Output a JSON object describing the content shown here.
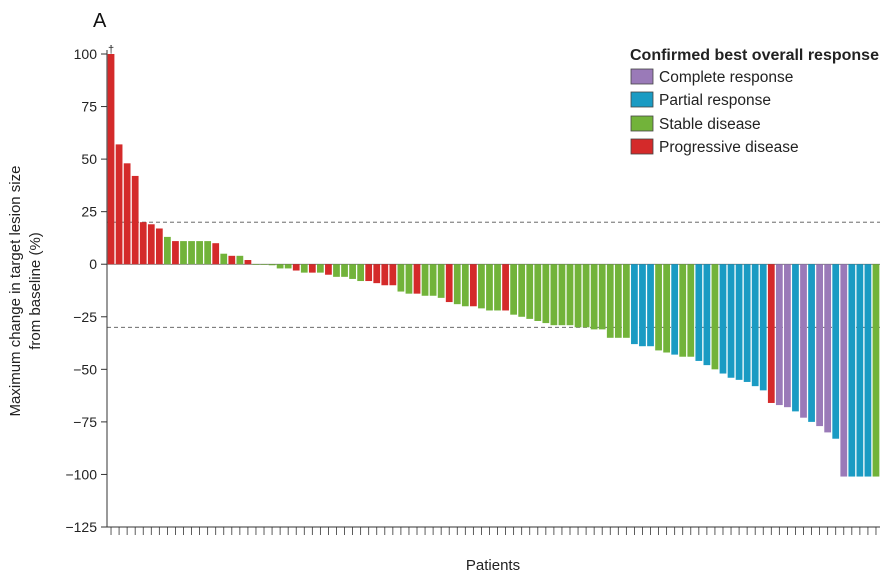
{
  "chart_data": {
    "type": "bar",
    "panel_label": "A",
    "ylabel_lines": [
      "Maximum change in target lesion size",
      "from baseline (%)"
    ],
    "xlabel": "Patients",
    "ylim": [
      -125,
      100
    ],
    "yticks": [
      100,
      75,
      50,
      25,
      0,
      -25,
      -50,
      -75,
      -100,
      -125
    ],
    "ytick_labels": [
      "100",
      "75",
      "50",
      "25",
      "0",
      "−25",
      "−50",
      "−75",
      "−100",
      "−125"
    ],
    "reference_lines": [
      20,
      -30
    ],
    "dagger_marker": "†",
    "legend": {
      "title": "Confirmed best overall response",
      "placement": "top-right",
      "items": [
        {
          "key": "CR",
          "label": "Complete response",
          "color": "#9a7ab8"
        },
        {
          "key": "PR",
          "label": "Partial response",
          "color": "#1a9bc3"
        },
        {
          "key": "SD",
          "label": "Stable disease",
          "color": "#72b33a"
        },
        {
          "key": "PD",
          "label": "Progressive disease",
          "color": "#d42a2a"
        }
      ]
    },
    "patients": [
      {
        "value": 100,
        "response": "PD",
        "dagger": true
      },
      {
        "value": 57,
        "response": "PD"
      },
      {
        "value": 48,
        "response": "PD"
      },
      {
        "value": 42,
        "response": "PD"
      },
      {
        "value": 20,
        "response": "PD"
      },
      {
        "value": 19,
        "response": "PD"
      },
      {
        "value": 17,
        "response": "PD"
      },
      {
        "value": 13,
        "response": "SD"
      },
      {
        "value": 11,
        "response": "PD"
      },
      {
        "value": 11,
        "response": "SD"
      },
      {
        "value": 11,
        "response": "SD"
      },
      {
        "value": 11,
        "response": "SD"
      },
      {
        "value": 11,
        "response": "SD"
      },
      {
        "value": 10,
        "response": "PD"
      },
      {
        "value": 5,
        "response": "SD"
      },
      {
        "value": 4,
        "response": "PD"
      },
      {
        "value": 4,
        "response": "SD"
      },
      {
        "value": 2,
        "response": "PD"
      },
      {
        "value": 0,
        "response": "SD"
      },
      {
        "value": 0,
        "response": "SD"
      },
      {
        "value": -0.5,
        "response": "SD"
      },
      {
        "value": -2,
        "response": "SD"
      },
      {
        "value": -2,
        "response": "SD"
      },
      {
        "value": -3,
        "response": "PD"
      },
      {
        "value": -4,
        "response": "SD"
      },
      {
        "value": -4,
        "response": "PD"
      },
      {
        "value": -4,
        "response": "SD"
      },
      {
        "value": -5,
        "response": "PD"
      },
      {
        "value": -6,
        "response": "SD"
      },
      {
        "value": -6,
        "response": "SD"
      },
      {
        "value": -7,
        "response": "SD"
      },
      {
        "value": -8,
        "response": "SD"
      },
      {
        "value": -8,
        "response": "PD"
      },
      {
        "value": -9,
        "response": "PD"
      },
      {
        "value": -10,
        "response": "PD"
      },
      {
        "value": -10,
        "response": "PD"
      },
      {
        "value": -13,
        "response": "SD"
      },
      {
        "value": -14,
        "response": "SD"
      },
      {
        "value": -14,
        "response": "PD"
      },
      {
        "value": -15,
        "response": "SD"
      },
      {
        "value": -15,
        "response": "SD"
      },
      {
        "value": -16,
        "response": "SD"
      },
      {
        "value": -18,
        "response": "PD"
      },
      {
        "value": -19,
        "response": "SD"
      },
      {
        "value": -20,
        "response": "SD"
      },
      {
        "value": -20,
        "response": "PD"
      },
      {
        "value": -21,
        "response": "SD"
      },
      {
        "value": -22,
        "response": "SD"
      },
      {
        "value": -22,
        "response": "SD"
      },
      {
        "value": -22,
        "response": "PD"
      },
      {
        "value": -24,
        "response": "SD"
      },
      {
        "value": -25,
        "response": "SD"
      },
      {
        "value": -26,
        "response": "SD"
      },
      {
        "value": -27,
        "response": "SD"
      },
      {
        "value": -28,
        "response": "SD"
      },
      {
        "value": -29,
        "response": "SD"
      },
      {
        "value": -29,
        "response": "SD"
      },
      {
        "value": -29,
        "response": "SD"
      },
      {
        "value": -30,
        "response": "SD"
      },
      {
        "value": -30,
        "response": "SD"
      },
      {
        "value": -31,
        "response": "SD"
      },
      {
        "value": -31,
        "response": "SD"
      },
      {
        "value": -35,
        "response": "SD"
      },
      {
        "value": -35,
        "response": "SD"
      },
      {
        "value": -35,
        "response": "SD"
      },
      {
        "value": -38,
        "response": "PR"
      },
      {
        "value": -39,
        "response": "PR"
      },
      {
        "value": -39,
        "response": "PR"
      },
      {
        "value": -41,
        "response": "SD"
      },
      {
        "value": -42,
        "response": "SD"
      },
      {
        "value": -43,
        "response": "PR"
      },
      {
        "value": -44,
        "response": "SD"
      },
      {
        "value": -44,
        "response": "SD"
      },
      {
        "value": -46,
        "response": "PR"
      },
      {
        "value": -48,
        "response": "PR"
      },
      {
        "value": -50,
        "response": "SD"
      },
      {
        "value": -52,
        "response": "PR"
      },
      {
        "value": -54,
        "response": "PR"
      },
      {
        "value": -55,
        "response": "PR"
      },
      {
        "value": -56,
        "response": "PR"
      },
      {
        "value": -58,
        "response": "PR"
      },
      {
        "value": -60,
        "response": "PR"
      },
      {
        "value": -66,
        "response": "PD"
      },
      {
        "value": -67,
        "response": "CR"
      },
      {
        "value": -68,
        "response": "CR"
      },
      {
        "value": -70,
        "response": "PR"
      },
      {
        "value": -73,
        "response": "CR"
      },
      {
        "value": -75,
        "response": "PR"
      },
      {
        "value": -77,
        "response": "CR"
      },
      {
        "value": -80,
        "response": "CR"
      },
      {
        "value": -83,
        "response": "PR"
      },
      {
        "value": -101,
        "response": "CR"
      },
      {
        "value": -101,
        "response": "PR"
      },
      {
        "value": -101,
        "response": "PR"
      },
      {
        "value": -101,
        "response": "PR"
      },
      {
        "value": -101,
        "response": "SD"
      }
    ]
  }
}
